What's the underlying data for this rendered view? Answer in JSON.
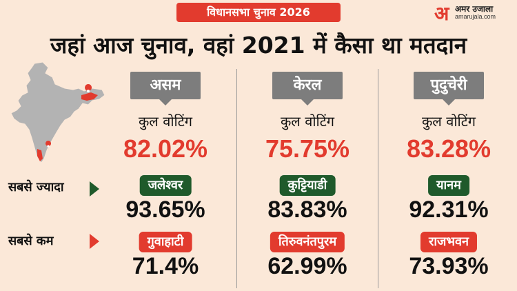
{
  "badge": "विधानसभा चुनाव 2026",
  "logo": {
    "mark": "अ",
    "name": "अमर उजाला",
    "url": "amarujala.com"
  },
  "headline": "जहां आज चुनाव, वहां 2021 में कैसा था मतदान",
  "rows": {
    "highest": "सबसे ज्यादा",
    "lowest": "सबसे कम"
  },
  "states": [
    {
      "name": "असम",
      "total_label": "कुल वोटिंग",
      "total": "82.02%",
      "highest_place": "जलेश्वर",
      "highest_value": "93.65%",
      "lowest_place": "गुवाहाटी",
      "lowest_value": "71.4%"
    },
    {
      "name": "केरल",
      "total_label": "कुल वोटिंग",
      "total": "75.75%",
      "highest_place": "कुट्टियाडी",
      "highest_value": "83.83%",
      "lowest_place": "तिरुवनंतपुरम",
      "lowest_value": "62.99%"
    },
    {
      "name": "पुदुचेरी",
      "total_label": "कुल वोटिंग",
      "total": "83.28%",
      "highest_place": "यानम",
      "highest_value": "92.31%",
      "lowest_place": "राजभवन",
      "lowest_value": "73.93%"
    }
  ],
  "colors": {
    "accent": "#e23b2e",
    "green": "#1f5a2b",
    "tag": "#7d7d7d",
    "background": "#fbe8d8"
  },
  "icons": {
    "map": "india-map-icon",
    "pin": "location-pin-icon"
  }
}
